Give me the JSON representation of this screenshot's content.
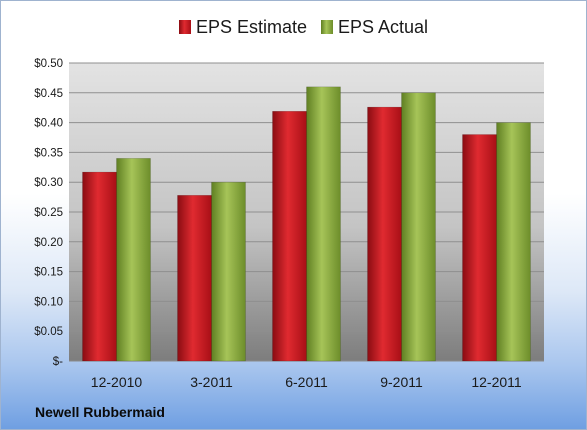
{
  "chart_data": {
    "type": "bar",
    "categories": [
      "12-2010",
      "3-2011",
      "6-2011",
      "9-2011",
      "12-2011"
    ],
    "series": [
      {
        "name": "EPS Estimate",
        "values": [
          0.317,
          0.278,
          0.419,
          0.426,
          0.38
        ],
        "color": "#c8141c"
      },
      {
        "name": "EPS Actual",
        "values": [
          0.34,
          0.3,
          0.46,
          0.45,
          0.4
        ],
        "color": "#8caf3c"
      }
    ],
    "yticks": [
      {
        "value": 0,
        "label": "$-"
      },
      {
        "value": 0.05,
        "label": "$0.05"
      },
      {
        "value": 0.1,
        "label": "$0.10"
      },
      {
        "value": 0.15,
        "label": "$0.15"
      },
      {
        "value": 0.2,
        "label": "$0.20"
      },
      {
        "value": 0.25,
        "label": "$0.25"
      },
      {
        "value": 0.3,
        "label": "$0.30"
      },
      {
        "value": 0.35,
        "label": "$0.35"
      },
      {
        "value": 0.4,
        "label": "$0.40"
      },
      {
        "value": 0.45,
        "label": "$0.45"
      },
      {
        "value": 0.5,
        "label": "$0.50"
      }
    ],
    "ylim": [
      0,
      0.5
    ],
    "grid": true,
    "legend_position": "top"
  },
  "company": "Newell Rubbermaid"
}
